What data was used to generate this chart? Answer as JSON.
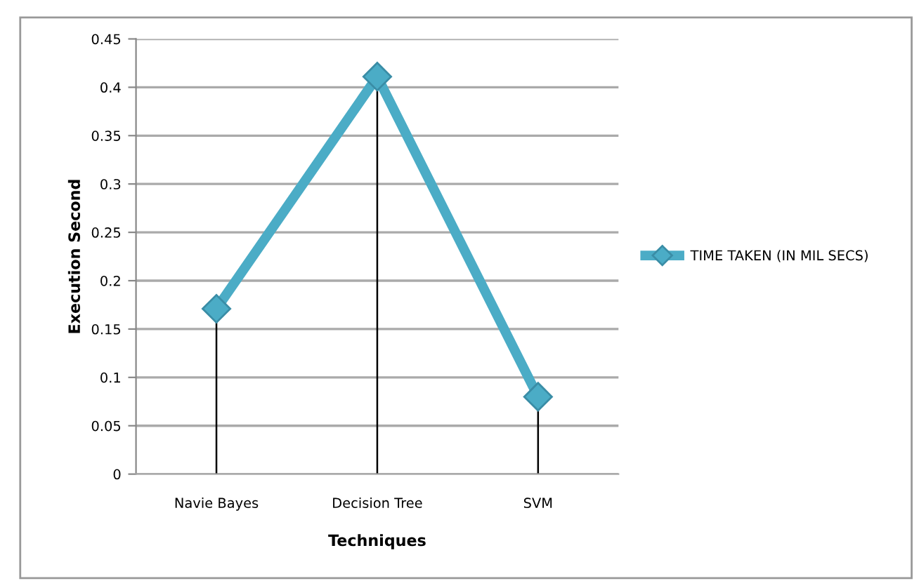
{
  "chart_data": {
    "type": "line",
    "xlabel": "Techniques",
    "ylabel": "Execution Second",
    "categories": [
      "Navie Bayes",
      "Decision Tree",
      "SVM"
    ],
    "series": [
      {
        "name": "TIME TAKEN (IN MIL SECS)",
        "color": "#4bacc6",
        "marker": "diamond",
        "line_style": "solid",
        "values": [
          0.171,
          0.411,
          0.08
        ],
        "errors": [
          [
            0,
            0.171
          ],
          [
            0,
            0.411
          ],
          [
            0,
            0.08
          ]
        ]
      }
    ],
    "ylim": [
      0,
      0.45
    ],
    "yticks": [
      0,
      {
        "value": 0.05,
        "label": "0.05"
      },
      {
        "value": 0.1,
        "label": "0.1"
      },
      {
        "value": 0.15,
        "label": "0.15"
      },
      {
        "value": 0.2,
        "label": "0.2"
      },
      {
        "value": 0.25,
        "label": "0.25"
      },
      {
        "value": 0.3,
        "label": "0.3"
      },
      {
        "value": 0.35,
        "label": "0.35"
      },
      {
        "value": 0.4,
        "label": "0.4"
      },
      {
        "value": 0.45,
        "label": "0.45"
      }
    ],
    "grid": "y",
    "legend": "right"
  }
}
